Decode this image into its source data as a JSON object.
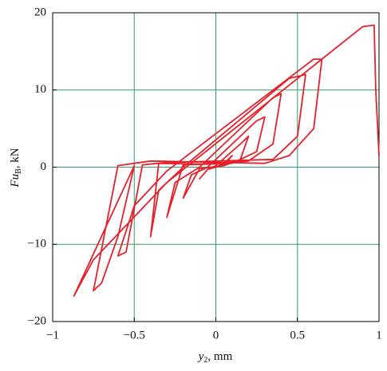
{
  "chart_data": {
    "type": "line",
    "xlabel": {
      "main": "y",
      "sub": "2",
      "unit": ", mm"
    },
    "ylabel": {
      "main": "Fu",
      "sub": "B",
      "unit": ", kN"
    },
    "xlim": [
      -1,
      1
    ],
    "ylim": [
      -20,
      20
    ],
    "xticks": [
      {
        "value": -1,
        "label": "−1"
      },
      {
        "value": -0.5,
        "label": "−0.5"
      },
      0,
      0.5,
      1
    ],
    "yticks": [
      {
        "value": -20,
        "label": "−20"
      },
      {
        "value": -10,
        "label": "−10"
      },
      0,
      10,
      20
    ],
    "grid": true,
    "grid_color": "#2e9e6e",
    "series": [
      {
        "color": "#e8202a",
        "x": [
          0,
          0.05,
          0.1,
          0.05,
          -0.05,
          -0.1,
          -0.05,
          0,
          0.15,
          0.2,
          0.15,
          0.05,
          -0.1,
          -0.2,
          -0.15,
          -0.05,
          0.25,
          0.3,
          0.25,
          0.1,
          -0.2,
          -0.3,
          -0.25,
          -0.1,
          0.35,
          0.4,
          0.35,
          0.2,
          -0.1,
          -0.35,
          -0.4,
          -0.35,
          -0.2,
          0.45,
          0.55,
          0.5,
          0.35,
          -0.3,
          -0.45,
          -0.55,
          -0.6,
          -0.5,
          -0.3,
          0.6,
          0.65,
          0.6,
          0.45,
          0.3,
          -0.4,
          -0.6,
          -0.75,
          -0.7,
          -0.6,
          -0.5,
          -0.87,
          -0.75,
          -0.3,
          0.9,
          0.97,
          0.98,
          1.0
        ],
        "y": [
          0,
          0.5,
          1.5,
          0.3,
          -0.3,
          -1.5,
          -0.3,
          0.2,
          3,
          4,
          1,
          0.2,
          -0.2,
          -4,
          -1,
          0,
          6,
          6.5,
          2,
          0.5,
          0.3,
          -6.5,
          -2,
          0,
          9,
          9.5,
          3,
          0.8,
          0.4,
          0.5,
          -9,
          -3,
          0,
          11.5,
          12,
          4,
          1,
          0.6,
          0.3,
          -11,
          -11.5,
          -5,
          -0.5,
          14,
          14,
          5,
          1.5,
          0.5,
          0.8,
          0.2,
          -16,
          -15,
          -9,
          0.2,
          -16.7,
          -12,
          -2,
          18.2,
          18.4,
          10,
          1.5
        ]
      }
    ]
  }
}
